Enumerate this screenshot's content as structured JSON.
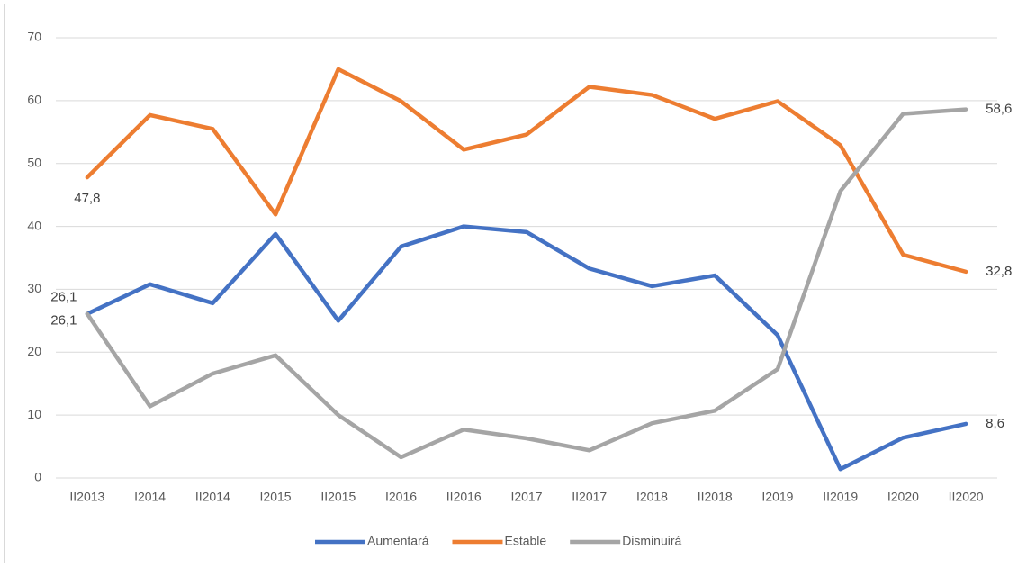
{
  "chart_data": {
    "type": "line",
    "categories": [
      "II2013",
      "I2014",
      "II2014",
      "I2015",
      "II2015",
      "I2016",
      "II2016",
      "I2017",
      "II2017",
      "I2018",
      "II2018",
      "I2019",
      "II2019",
      "I2020",
      "II2020"
    ],
    "series": [
      {
        "name": "Aumentará",
        "color": "#4472c4",
        "values": [
          26.1,
          30.8,
          27.8,
          38.8,
          25.0,
          36.8,
          40.0,
          39.1,
          33.3,
          30.5,
          32.2,
          22.7,
          1.4,
          6.4,
          8.6
        ],
        "value_labels": [
          "26,1",
          null,
          null,
          null,
          null,
          null,
          null,
          null,
          null,
          null,
          null,
          null,
          null,
          null,
          "8,6"
        ]
      },
      {
        "name": "Estable",
        "color": "#ed7d31",
        "values": [
          47.8,
          57.7,
          55.5,
          41.9,
          65.0,
          59.9,
          52.2,
          54.6,
          62.2,
          60.9,
          57.1,
          59.9,
          52.9,
          35.5,
          32.8
        ],
        "value_labels": [
          "47,8",
          null,
          null,
          null,
          null,
          null,
          null,
          null,
          null,
          null,
          null,
          null,
          null,
          null,
          "32,8"
        ]
      },
      {
        "name": "Disminuirá",
        "color": "#a5a5a5",
        "values": [
          26.1,
          11.4,
          16.6,
          19.5,
          10.0,
          3.3,
          7.7,
          6.3,
          4.4,
          8.7,
          10.7,
          17.3,
          45.6,
          57.9,
          58.6
        ],
        "value_labels": [
          "26,1",
          null,
          null,
          null,
          null,
          null,
          null,
          null,
          null,
          null,
          null,
          null,
          null,
          null,
          "58,6"
        ]
      }
    ],
    "ylim": [
      0,
      70
    ],
    "yticks": [
      0,
      10,
      20,
      30,
      40,
      50,
      60,
      70
    ],
    "grid": true,
    "legend": "bottom"
  }
}
